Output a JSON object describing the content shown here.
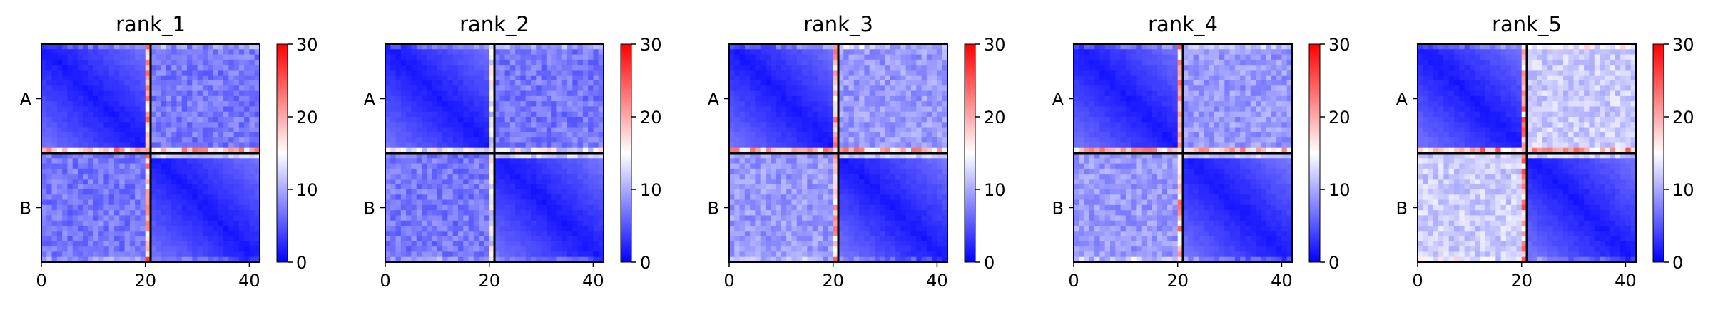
{
  "chart_data": {
    "type": "heatmap",
    "layout": "1 row × 5 panels, each with its own colorbar",
    "colormap": [
      "#0000ff",
      "#ffffff",
      "#ff0000"
    ],
    "color_range": [
      0,
      30
    ],
    "colorbar_ticks": [
      "0",
      "10",
      "20",
      "30"
    ],
    "x_range": [
      0,
      42
    ],
    "x_ticks": [
      "0",
      "20",
      "40"
    ],
    "y_ticks": [
      "A",
      "B"
    ],
    "block_boundary": 21,
    "grid": false,
    "panels": [
      {
        "title": "rank_1",
        "block_means": {
          "AA": 4,
          "AB": 7,
          "BA": 7,
          "BB": 4
        },
        "boundary_peak": 25
      },
      {
        "title": "rank_2",
        "block_means": {
          "AA": 4,
          "AB": 7,
          "BA": 7,
          "BB": 4
        },
        "boundary_peak": 18
      },
      {
        "title": "rank_3",
        "block_means": {
          "AA": 4,
          "AB": 9,
          "BA": 9,
          "BB": 4
        },
        "boundary_peak": 24
      },
      {
        "title": "rank_4",
        "block_means": {
          "AA": 4,
          "AB": 9,
          "BA": 9,
          "BB": 4
        },
        "boundary_peak": 24
      },
      {
        "title": "rank_5",
        "block_means": {
          "AA": 4,
          "AB": 12,
          "BA": 12,
          "BB": 4
        },
        "boundary_peak": 26
      }
    ]
  }
}
